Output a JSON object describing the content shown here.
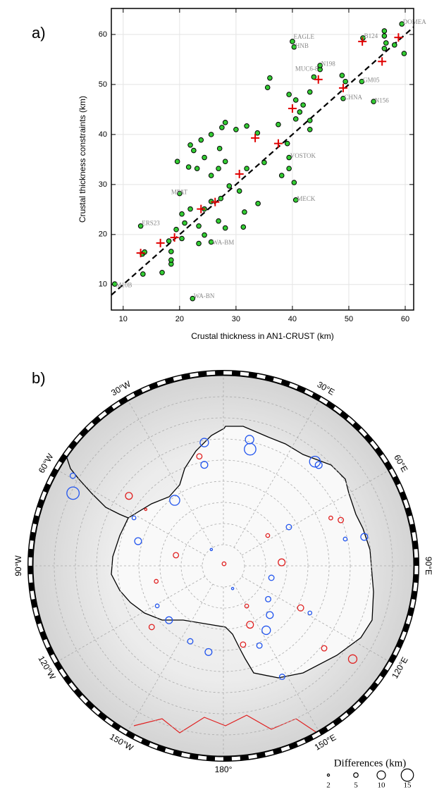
{
  "chart_data": [
    {
      "type": "scatter",
      "panel_label": "a)",
      "x_label": "Crustal thickness in AN1-CRUST (km)",
      "y_label": "Crustal thickness constraints (km)",
      "xlim": [
        7.9,
        61.5
      ],
      "ylim": [
        4.9,
        65.2
      ],
      "xticks": [
        10,
        20,
        30,
        40,
        50,
        60
      ],
      "yticks": [
        10,
        20,
        30,
        40,
        50,
        60
      ],
      "grid": true,
      "diagonal": true,
      "series": [
        {
          "marker": "circle",
          "color": "#33cc33",
          "x": [
            22.3,
            8.5,
            13.5,
            16.9,
            18.5,
            18.5,
            13.4,
            13.8,
            18.5,
            23.4,
            25.6,
            24.4,
            18.1,
            20.4,
            13.1,
            19.4,
            20.9,
            23.4,
            26.9,
            28.1,
            31.3,
            31.5,
            33.9,
            40.6,
            20.4,
            21.9,
            24.4,
            25.6,
            27.3,
            20.0,
            28.8,
            30.6,
            25.6,
            23.1,
            21.6,
            19.6,
            26.9,
            28.1,
            31.9,
            35.0,
            39.4,
            40.3,
            39.4,
            38.1,
            21.9,
            23.8,
            25.6,
            27.5,
            28.1,
            30.0,
            31.9,
            33.8,
            37.5,
            40.6,
            41.3,
            41.9,
            40.6,
            39.4,
            36.0,
            35.6,
            43.1,
            44.9,
            43.8,
            40.0,
            40.3,
            44.9,
            48.8,
            49.4,
            52.3,
            49.0,
            54.4,
            52.5,
            56.3,
            56.6,
            56.3,
            58.1,
            59.4,
            59.8,
            56.3,
            43.1,
            43.1,
            39.1,
            22.5,
            27.1,
            24.4
          ],
          "values": [
            7.2,
            10.1,
            12.1,
            12.4,
            14.1,
            14.9,
            16.1,
            16.5,
            16.6,
            18.2,
            18.5,
            19.9,
            18.7,
            19.2,
            21.7,
            21.0,
            22.3,
            21.7,
            22.7,
            21.3,
            21.5,
            24.5,
            26.2,
            26.9,
            24.1,
            25.1,
            25.1,
            26.6,
            27.2,
            28.2,
            29.7,
            28.7,
            31.8,
            33.2,
            33.5,
            34.6,
            33.2,
            34.6,
            33.2,
            34.4,
            35.4,
            30.4,
            33.2,
            31.8,
            37.9,
            38.9,
            40.0,
            41.4,
            42.4,
            41.0,
            41.7,
            40.3,
            42.0,
            43.1,
            44.5,
            45.9,
            46.9,
            48.0,
            51.3,
            49.4,
            48.5,
            53.0,
            51.5,
            58.6,
            57.5,
            53.8,
            51.8,
            50.6,
            50.6,
            47.2,
            46.6,
            59.3,
            59.7,
            58.3,
            57.2,
            57.9,
            62.1,
            56.2,
            60.7,
            42.8,
            41.0,
            38.2,
            36.8,
            37.2,
            35.4
          ]
        },
        {
          "marker": "plus",
          "color": "#e00000",
          "x": [
            13.1,
            16.6,
            19.1,
            23.8,
            26.3,
            30.6,
            33.4,
            37.5,
            40.0,
            44.6,
            49.0,
            52.4,
            55.9,
            58.8
          ],
          "values": [
            16.3,
            18.3,
            19.4,
            25.1,
            26.5,
            32.1,
            39.3,
            38.2,
            45.2,
            51.0,
            49.3,
            58.6,
            54.6,
            59.4
          ]
        }
      ],
      "annotations": [
        {
          "text": "EAGLE",
          "x": 40.2,
          "y": 59.4
        },
        {
          "text": "HNB",
          "x": 40.5,
          "y": 57.6
        },
        {
          "text": "DOMEA",
          "x": 59.6,
          "y": 62.4
        },
        {
          "text": "B124",
          "x": 52.7,
          "y": 59.6
        },
        {
          "text": "N198",
          "x": 45.1,
          "y": 54.0
        },
        {
          "text": "MUC6-8",
          "x": 40.5,
          "y": 53.0
        },
        {
          "text": "GM05",
          "x": 52.5,
          "y": 50.8
        },
        {
          "text": "CHNA",
          "x": 49.2,
          "y": 47.3
        },
        {
          "text": "N156",
          "x": 54.6,
          "y": 46.7
        },
        {
          "text": "VOSTOK",
          "x": 39.6,
          "y": 35.6
        },
        {
          "text": "MECK",
          "x": 40.8,
          "y": 27.0
        },
        {
          "text": "MPAT",
          "x": 18.5,
          "y": 28.4
        },
        {
          "text": "ERS23",
          "x": 13.3,
          "y": 22.2
        },
        {
          "text": "M10B",
          "x": 8.7,
          "y": 9.8
        },
        {
          "text": "WA-BN",
          "x": 22.5,
          "y": 7.6
        },
        {
          "text": "WA-BM",
          "x": 25.8,
          "y": 18.3
        }
      ]
    },
    {
      "type": "map",
      "panel_label": "b)",
      "latlim": [
        -90,
        -45
      ],
      "graticule_lats": [
        -85,
        -80,
        -75,
        -70,
        -65,
        -60,
        -55,
        -50
      ],
      "graticule_lon_step": 30,
      "lon_labels": [
        {
          "label": "30°W",
          "lon": -30
        },
        {
          "label": "30°E",
          "lon": 30
        },
        {
          "label": "60°W",
          "lon": -60
        },
        {
          "label": "60°E",
          "lon": 60
        },
        {
          "label": "90°W",
          "lon": -90
        },
        {
          "label": "90°E",
          "lon": 90
        },
        {
          "label": "120°W",
          "lon": -120
        },
        {
          "label": "120°E",
          "lon": 120
        },
        {
          "label": "150°W",
          "lon": -150
        },
        {
          "label": "150°E",
          "lon": 150
        },
        {
          "label": "180°",
          "lon": 180
        }
      ],
      "legend_title": "Differences (km)",
      "legend_sizes": [
        2,
        5,
        10,
        15
      ],
      "series": [
        {
          "color": "#2255ee",
          "lon": [
            12.9,
            11.7,
            -8.8,
            -10.7,
            41.3,
            43.4,
            -64.2,
            -59.1,
            -36.6,
            -61.8,
            -73.9,
            59.4,
            78.4,
            77.6,
            126.7,
            104,
            136.7,
            146.4,
            155.7,
            -170.2,
            -156.3,
            -135,
            -121.2,
            152.1,
            118.6,
            157.9,
            -36.5
          ],
          "lat": [
            -61.7,
            -59.5,
            -60.5,
            -65.7,
            -57.2,
            -57.2,
            -50.5,
            -48.5,
            -70.7,
            -66,
            -69,
            -72,
            -56,
            -60.5,
            -76.8,
            -78.3,
            -74,
            -71.7,
            -69.3,
            -69.3,
            -70.5,
            -71.8,
            -71.7,
            -60.3,
            -66.7,
            -84.2,
            -85.2
          ],
          "values": [
            14,
            10,
            10,
            8,
            13,
            8,
            15,
            6,
            12,
            4,
            8,
            6,
            8,
            4,
            6,
            6,
            8,
            10,
            6,
            8,
            6,
            8,
            4,
            6,
            4,
            2,
            2
          ]
        },
        {
          "color": "#e02020",
          "lon": [
            18,
            -53.5,
            -12.4,
            -77.4,
            86.6,
            118.6,
            68.7,
            149.9,
            155.7,
            166,
            125.8,
            129.3,
            -130.5,
            -103,
            55.7,
            66,
            -54
          ],
          "lat": [
            -89.5,
            -62.2,
            -63.5,
            -78.5,
            -76.2,
            -69.2,
            -60.2,
            -79,
            -74.7,
            -70.8,
            -52.3,
            -59.2,
            -67.7,
            -73.7,
            -77.3,
            -62.2,
            -67.3
          ],
          "values": [
            4,
            8,
            6,
            6,
            8,
            7,
            6,
            4,
            8,
            6,
            10,
            6,
            6,
            4,
            4,
            4,
            2
          ]
        }
      ]
    }
  ]
}
